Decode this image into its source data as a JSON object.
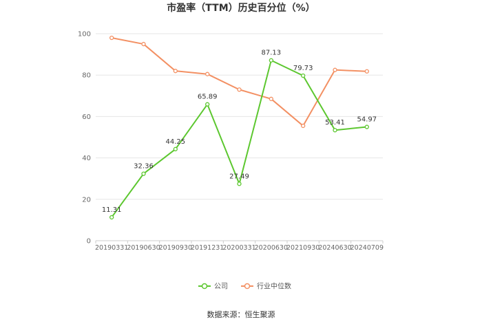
{
  "chart_data": {
    "type": "line",
    "title": "市盈率（TTM）历史百分位（%）",
    "categories": [
      "20190331",
      "20190630",
      "20190930",
      "20191231",
      "20200331",
      "20200630",
      "20210930",
      "20240630",
      "20240709"
    ],
    "series": [
      {
        "name": "公司",
        "color": "#5cc72f",
        "values": [
          11.31,
          32.36,
          44.25,
          65.89,
          27.49,
          87.13,
          79.73,
          53.41,
          54.97
        ],
        "show_labels": true
      },
      {
        "name": "行业中位数",
        "color": "#f39063",
        "values": [
          98.0,
          95.0,
          82.0,
          80.5,
          73.0,
          68.5,
          55.5,
          82.5,
          81.8
        ],
        "show_labels": false
      }
    ],
    "ylim": [
      0,
      100
    ],
    "yticks": [
      0,
      20,
      40,
      60,
      80,
      100
    ],
    "grid": true,
    "legend": "bottom-center"
  },
  "source": "数据来源：恒生聚源"
}
